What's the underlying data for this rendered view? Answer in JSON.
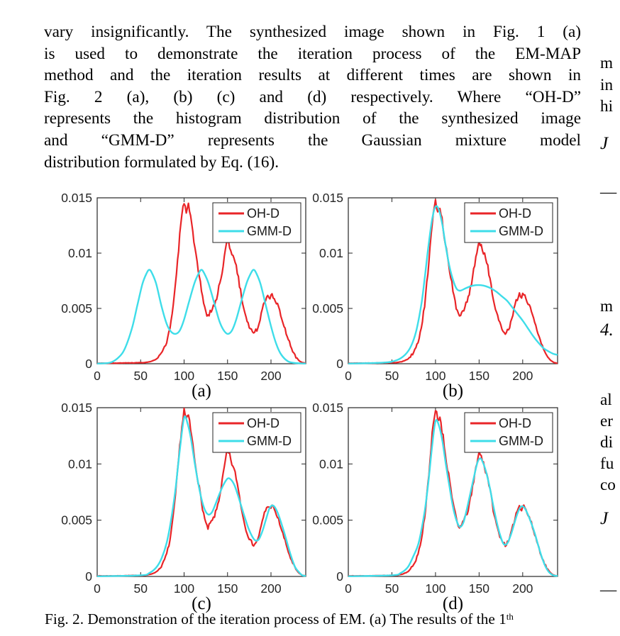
{
  "page": {
    "background": "#ffffff"
  },
  "paragraph": {
    "lines": [
      "vary insignificantly. The synthesized image shown in Fig. 1 (a)",
      "is used to demonstrate the iteration process of the EM-MAP",
      "method and the iteration results at different times are shown in",
      "Fig. 2 (a), (b) (c) and (d) respectively. Where “OH-D”",
      "represents the histogram distribution of the synthesized image",
      "and “GMM-D” represents the Gaussian mixture model",
      "distribution formulated by Eq. (16)."
    ]
  },
  "caption": {
    "text": "Fig. 2. Demonstration of the iteration process of EM. (a) The results of the 1",
    "superscript": "th"
  },
  "right_column_fragments": [
    {
      "text": "m",
      "y": 76,
      "italic": false
    },
    {
      "text": "in",
      "y": 107,
      "italic": false
    },
    {
      "text": "hi",
      "y": 137,
      "italic": false
    },
    {
      "text": "J",
      "y": 189,
      "italic": true
    },
    {
      "text": "—",
      "y": 258,
      "italic": false
    },
    {
      "text": "m",
      "y": 419,
      "italic": false
    },
    {
      "text": "4.",
      "y": 452,
      "italic": true
    },
    {
      "text": "al",
      "y": 551,
      "italic": false
    },
    {
      "text": "er",
      "y": 581,
      "italic": false
    },
    {
      "text": "di",
      "y": 611,
      "italic": false
    },
    {
      "text": "fu",
      "y": 641,
      "italic": false
    },
    {
      "text": "co",
      "y": 671,
      "italic": false
    },
    {
      "text": "J",
      "y": 718,
      "italic": true
    },
    {
      "text": "—",
      "y": 819,
      "italic": false
    }
  ],
  "chart_data": {
    "type": "line",
    "title": "Fig. 2. Demonstration of the iteration process of EM",
    "xlabel": "",
    "ylabel": "",
    "xlim": [
      0,
      240
    ],
    "ylim": [
      0,
      0.015
    ],
    "xticks": [
      0,
      50,
      100,
      150,
      200
    ],
    "yticks": [
      0,
      0.005,
      0.01,
      0.015
    ],
    "yticklabels": [
      "0",
      "0.005",
      "0.01",
      "0.015"
    ],
    "grid": false,
    "legend": [
      "OH-D",
      "GMM-D"
    ],
    "legend_position": "top-right",
    "colors": {
      "oh_d": "#e92528",
      "gmm_d": "#3edde9",
      "axis": "#262626"
    },
    "oh_d_points": [
      [
        0,
        5e-05
      ],
      [
        20,
        5e-05
      ],
      [
        40,
        8e-05
      ],
      [
        55,
        0.0001
      ],
      [
        62,
        0.0002
      ],
      [
        68,
        0.0004
      ],
      [
        72,
        0.0007
      ],
      [
        76,
        0.0012
      ],
      [
        80,
        0.002
      ],
      [
        84,
        0.0033
      ],
      [
        88,
        0.0056
      ],
      [
        92,
        0.0088
      ],
      [
        96,
        0.0124
      ],
      [
        100,
        0.0148
      ],
      [
        103,
        0.0137
      ],
      [
        105,
        0.0143
      ],
      [
        108,
        0.0128
      ],
      [
        112,
        0.0105
      ],
      [
        116,
        0.0086
      ],
      [
        120,
        0.0066
      ],
      [
        124,
        0.005
      ],
      [
        127,
        0.0042
      ],
      [
        130,
        0.0047
      ],
      [
        133,
        0.005
      ],
      [
        137,
        0.0058
      ],
      [
        141,
        0.0072
      ],
      [
        145,
        0.009
      ],
      [
        148,
        0.0105
      ],
      [
        150,
        0.011
      ],
      [
        153,
        0.0106
      ],
      [
        156,
        0.0098
      ],
      [
        160,
        0.0088
      ],
      [
        164,
        0.007
      ],
      [
        168,
        0.0052
      ],
      [
        172,
        0.004
      ],
      [
        176,
        0.0032
      ],
      [
        180,
        0.0028
      ],
      [
        184,
        0.0031
      ],
      [
        188,
        0.0042
      ],
      [
        192,
        0.0055
      ],
      [
        196,
        0.0063
      ],
      [
        199,
        0.006
      ],
      [
        201,
        0.0065
      ],
      [
        204,
        0.0058
      ],
      [
        208,
        0.0052
      ],
      [
        212,
        0.0042
      ],
      [
        216,
        0.0032
      ],
      [
        220,
        0.0022
      ],
      [
        224,
        0.0013
      ],
      [
        228,
        0.0007
      ],
      [
        232,
        0.0003
      ],
      [
        236,
        0.0001
      ],
      [
        240,
        5e-05
      ]
    ],
    "subplots": [
      {
        "label": "(a)",
        "gmm_d": [
          [
            0,
            2e-05
          ],
          [
            15,
            0.0001
          ],
          [
            25,
            0.0006
          ],
          [
            32,
            0.0014
          ],
          [
            40,
            0.0032
          ],
          [
            46,
            0.0052
          ],
          [
            52,
            0.0072
          ],
          [
            57,
            0.0082
          ],
          [
            60,
            0.0085
          ],
          [
            63,
            0.0082
          ],
          [
            68,
            0.0072
          ],
          [
            74,
            0.0052
          ],
          [
            80,
            0.0036
          ],
          [
            85,
            0.0029
          ],
          [
            90,
            0.0027
          ],
          [
            95,
            0.003
          ],
          [
            100,
            0.004
          ],
          [
            106,
            0.0057
          ],
          [
            112,
            0.0073
          ],
          [
            117,
            0.0082
          ],
          [
            120,
            0.0085
          ],
          [
            123,
            0.0082
          ],
          [
            128,
            0.0073
          ],
          [
            134,
            0.0057
          ],
          [
            140,
            0.004
          ],
          [
            145,
            0.0031
          ],
          [
            150,
            0.0027
          ],
          [
            155,
            0.003
          ],
          [
            160,
            0.004
          ],
          [
            166,
            0.0057
          ],
          [
            172,
            0.0073
          ],
          [
            177,
            0.0082
          ],
          [
            180,
            0.0085
          ],
          [
            183,
            0.0082
          ],
          [
            188,
            0.0072
          ],
          [
            194,
            0.0053
          ],
          [
            200,
            0.0034
          ],
          [
            206,
            0.0018
          ],
          [
            212,
            0.0008
          ],
          [
            220,
            0.0002
          ],
          [
            230,
            5e-05
          ],
          [
            240,
            2e-05
          ]
        ]
      },
      {
        "label": "(b)",
        "gmm_d": [
          [
            0,
            2e-05
          ],
          [
            40,
            0.0001
          ],
          [
            55,
            0.0003
          ],
          [
            65,
            0.0008
          ],
          [
            72,
            0.0016
          ],
          [
            78,
            0.003
          ],
          [
            84,
            0.0055
          ],
          [
            88,
            0.008
          ],
          [
            92,
            0.0107
          ],
          [
            96,
            0.013
          ],
          [
            100,
            0.0142
          ],
          [
            104,
            0.0139
          ],
          [
            108,
            0.0125
          ],
          [
            112,
            0.0105
          ],
          [
            116,
            0.0088
          ],
          [
            120,
            0.0076
          ],
          [
            124,
            0.0068
          ],
          [
            128,
            0.0066
          ],
          [
            134,
            0.0068
          ],
          [
            140,
            0.007
          ],
          [
            146,
            0.0071
          ],
          [
            152,
            0.0071
          ],
          [
            158,
            0.007
          ],
          [
            164,
            0.0068
          ],
          [
            170,
            0.0065
          ],
          [
            176,
            0.0061
          ],
          [
            182,
            0.0057
          ],
          [
            188,
            0.0051
          ],
          [
            194,
            0.0045
          ],
          [
            200,
            0.0039
          ],
          [
            206,
            0.0032
          ],
          [
            212,
            0.0025
          ],
          [
            218,
            0.0019
          ],
          [
            224,
            0.0014
          ],
          [
            230,
            0.0011
          ],
          [
            235,
            0.0009
          ],
          [
            240,
            0.0008
          ]
        ]
      },
      {
        "label": "(c)",
        "gmm_d": [
          [
            0,
            2e-05
          ],
          [
            50,
            0.0001
          ],
          [
            60,
            0.0003
          ],
          [
            68,
            0.0008
          ],
          [
            74,
            0.0016
          ],
          [
            80,
            0.003
          ],
          [
            85,
            0.005
          ],
          [
            90,
            0.0077
          ],
          [
            95,
            0.0112
          ],
          [
            100,
            0.0141
          ],
          [
            104,
            0.0136
          ],
          [
            108,
            0.0122
          ],
          [
            112,
            0.0102
          ],
          [
            116,
            0.0084
          ],
          [
            120,
            0.0069
          ],
          [
            124,
            0.0059
          ],
          [
            128,
            0.0055
          ],
          [
            132,
            0.0057
          ],
          [
            136,
            0.0064
          ],
          [
            140,
            0.0072
          ],
          [
            145,
            0.0081
          ],
          [
            150,
            0.0087
          ],
          [
            154,
            0.0086
          ],
          [
            158,
            0.0081
          ],
          [
            162,
            0.0072
          ],
          [
            166,
            0.0062
          ],
          [
            170,
            0.0052
          ],
          [
            174,
            0.0043
          ],
          [
            178,
            0.0036
          ],
          [
            182,
            0.0032
          ],
          [
            186,
            0.0033
          ],
          [
            190,
            0.004
          ],
          [
            194,
            0.005
          ],
          [
            198,
            0.006
          ],
          [
            201,
            0.0063
          ],
          [
            204,
            0.0062
          ],
          [
            208,
            0.0056
          ],
          [
            212,
            0.0047
          ],
          [
            216,
            0.0037
          ],
          [
            220,
            0.0026
          ],
          [
            224,
            0.0016
          ],
          [
            228,
            0.0008
          ],
          [
            232,
            0.0004
          ],
          [
            236,
            0.0001
          ],
          [
            240,
            5e-05
          ]
        ]
      },
      {
        "label": "(d)",
        "gmm_d": [
          [
            0,
            2e-05
          ],
          [
            50,
            0.0001
          ],
          [
            60,
            0.0003
          ],
          [
            68,
            0.0008
          ],
          [
            74,
            0.0017
          ],
          [
            80,
            0.0028
          ],
          [
            84,
            0.0042
          ],
          [
            88,
            0.006
          ],
          [
            92,
            0.0085
          ],
          [
            96,
            0.0115
          ],
          [
            100,
            0.0138
          ],
          [
            104,
            0.0134
          ],
          [
            108,
            0.012
          ],
          [
            112,
            0.0099
          ],
          [
            116,
            0.008
          ],
          [
            120,
            0.0062
          ],
          [
            124,
            0.005
          ],
          [
            128,
            0.0044
          ],
          [
            132,
            0.0048
          ],
          [
            136,
            0.006
          ],
          [
            140,
            0.0074
          ],
          [
            144,
            0.0088
          ],
          [
            148,
            0.0101
          ],
          [
            151,
            0.0105
          ],
          [
            154,
            0.0102
          ],
          [
            158,
            0.0093
          ],
          [
            162,
            0.008
          ],
          [
            166,
            0.0064
          ],
          [
            170,
            0.0049
          ],
          [
            174,
            0.0037
          ],
          [
            178,
            0.0029
          ],
          [
            182,
            0.0029
          ],
          [
            186,
            0.0036
          ],
          [
            190,
            0.0046
          ],
          [
            194,
            0.0056
          ],
          [
            198,
            0.0062
          ],
          [
            202,
            0.0061
          ],
          [
            206,
            0.0055
          ],
          [
            210,
            0.0047
          ],
          [
            214,
            0.0038
          ],
          [
            218,
            0.0027
          ],
          [
            222,
            0.0017
          ],
          [
            226,
            0.0009
          ],
          [
            230,
            0.0004
          ],
          [
            235,
            0.0001
          ],
          [
            240,
            5e-05
          ]
        ]
      }
    ]
  }
}
